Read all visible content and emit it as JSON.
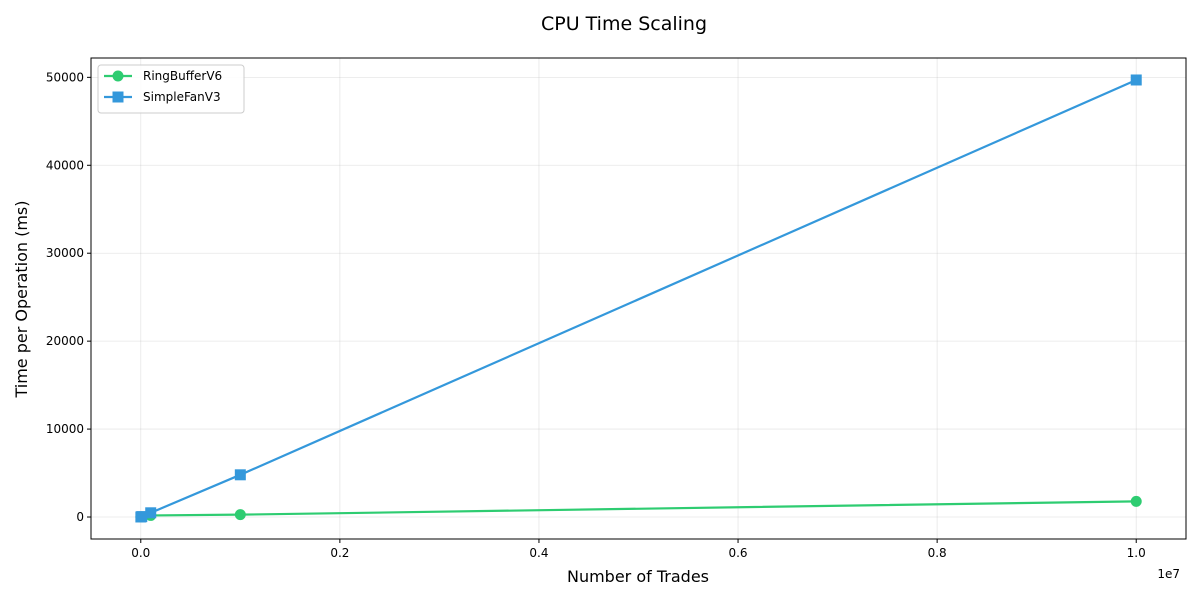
{
  "chart_data": {
    "type": "line",
    "title": "CPU Time Scaling",
    "xlabel": "Number of Trades",
    "ylabel": "Time per Operation (ms)",
    "x_offset_label": "1e7",
    "xlim": [
      -500000,
      10500000
    ],
    "ylim": [
      -2500,
      52200
    ],
    "x_ticks": [
      0,
      2000000,
      4000000,
      6000000,
      8000000,
      10000000
    ],
    "x_tick_labels": [
      "0.0",
      "0.2",
      "0.4",
      "0.6",
      "0.8",
      "1.0"
    ],
    "y_ticks": [
      0,
      10000,
      20000,
      30000,
      40000,
      50000
    ],
    "y_tick_labels": [
      "0",
      "10000",
      "20000",
      "30000",
      "40000",
      "50000"
    ],
    "grid": true,
    "legend_position": "top-left",
    "series": [
      {
        "name": "RingBufferV6",
        "color": "#2ecc71",
        "marker": "circle",
        "x": [
          1000,
          10000,
          100000,
          1000000,
          10000000
        ],
        "y": [
          2,
          20,
          180,
          270,
          1780
        ]
      },
      {
        "name": "SimpleFanV3",
        "color": "#3498db",
        "marker": "square",
        "x": [
          1000,
          10000,
          100000,
          1000000,
          10000000
        ],
        "y": [
          5,
          50,
          480,
          4800,
          49700
        ]
      }
    ]
  }
}
